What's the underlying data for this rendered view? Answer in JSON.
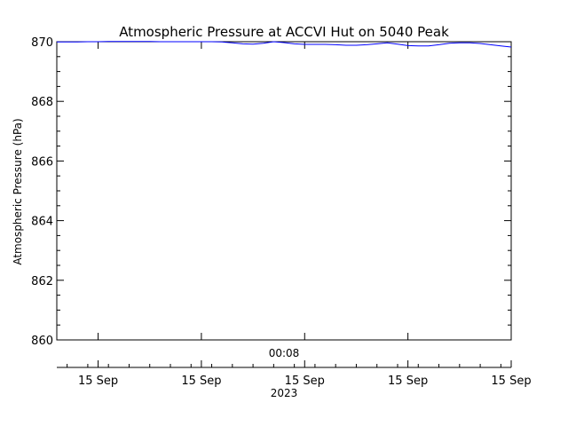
{
  "chart_data": {
    "type": "line",
    "title": "Atmospheric Pressure at ACCVI Hut on 5040 Peak",
    "xlabel": "00:08",
    "ylabel": "Atmospheric Pressure (hPa)",
    "ylim": [
      860,
      870
    ],
    "yticks": [
      860,
      862,
      864,
      866,
      868,
      870
    ],
    "ytick_labels": [
      "860",
      "862",
      "864",
      "866",
      "868",
      "870"
    ],
    "xlim": [
      0,
      44
    ],
    "series": [
      {
        "color": "#0000ff",
        "x": [
          0,
          1,
          2,
          3,
          4,
          5,
          6,
          7,
          8,
          9,
          10,
          11,
          12,
          13,
          14,
          15,
          16,
          17,
          18,
          19,
          20,
          21,
          22,
          23,
          24,
          25,
          26,
          27,
          28,
          29,
          30,
          31,
          32,
          33,
          34,
          35,
          36,
          37,
          38,
          39,
          40,
          41,
          42,
          43,
          44
        ],
        "y": [
          869.99,
          869.99,
          869.99,
          870.0,
          870.0,
          870.01,
          870.01,
          870.01,
          870.01,
          870.01,
          870.0,
          870.0,
          870.0,
          870.0,
          870.0,
          870.0,
          869.99,
          869.96,
          869.93,
          869.92,
          869.95,
          870.0,
          869.97,
          869.93,
          869.91,
          869.91,
          869.91,
          869.9,
          869.88,
          869.88,
          869.9,
          869.93,
          869.96,
          869.92,
          869.87,
          869.86,
          869.86,
          869.9,
          869.95,
          869.96,
          869.96,
          869.94,
          869.9,
          869.86,
          869.82
        ]
      }
    ],
    "bottom_axis": {
      "ticks": [
        4,
        14,
        24,
        34,
        44
      ],
      "tick_labels": [
        "15 Sep",
        "15 Sep",
        "15 Sep",
        "15 Sep",
        "15 Sep"
      ],
      "label": "2023"
    }
  }
}
